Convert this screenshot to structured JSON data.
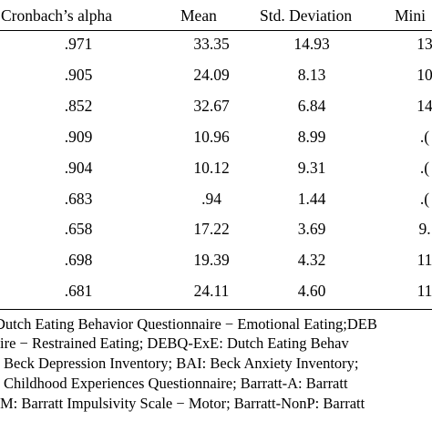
{
  "table": {
    "headers": {
      "alpha": "Cronbach’s alpha",
      "mean": "Mean",
      "sd": "Std. Deviation",
      "min": "Mini"
    },
    "rows": [
      {
        "alpha": ".971",
        "mean": "33.35",
        "sd": "14.93",
        "min": "13"
      },
      {
        "alpha": ".905",
        "mean": "24.09",
        "sd": "8.13",
        "min": "10"
      },
      {
        "alpha": ".852",
        "mean": "32.67",
        "sd": "6.84",
        "min": "14"
      },
      {
        "alpha": ".909",
        "mean": "10.96",
        "sd": "8.99",
        "min": ".("
      },
      {
        "alpha": ".904",
        "mean": "10.12",
        "sd": "9.31",
        "min": ".("
      },
      {
        "alpha": ".683",
        "mean": ".94",
        "sd": "1.44",
        "min": ".("
      },
      {
        "alpha": ".658",
        "mean": "17.22",
        "sd": "3.69",
        "min": "9."
      },
      {
        "alpha": ".698",
        "mean": "19.39",
        "sd": "4.32",
        "min": "11"
      },
      {
        "alpha": ".681",
        "mean": "24.11",
        "sd": "4.60",
        "min": "11"
      }
    ]
  },
  "notes": [
    "Dutch Eating Behavior Questionnaire − Emotional Eating;DEB",
    "ire − Restrained Eating; DEBQ-ExE: Dutch Eating Behav",
    " Beck Depression Inventory; BAI: Beck Anxiety Inventory;",
    " Childhood Experiences Questionnaire; Barratt-A: Barratt",
    "M: Barratt Impulsivity Scale − Motor; Barratt-NonP: Barratt"
  ]
}
